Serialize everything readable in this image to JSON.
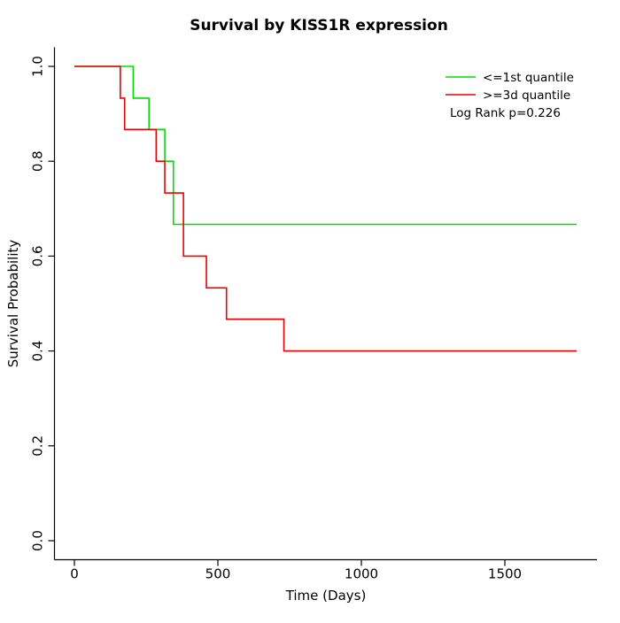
{
  "title": "Survival by KISS1R expression",
  "chart_data": {
    "type": "line",
    "subtype": "kaplan-meier-step",
    "title": "Survival by KISS1R expression",
    "xlabel": "Time (Days)",
    "ylabel": "Survival Probability",
    "xlim": [
      0,
      1750
    ],
    "ylim": [
      0.0,
      1.0
    ],
    "xticks": [
      0,
      500,
      1000,
      1500
    ],
    "yticks": [
      0.0,
      0.2,
      0.4,
      0.6,
      0.8,
      1.0
    ],
    "grid": false,
    "legend_position": "top-right",
    "annotation": "Log Rank p=0.226",
    "series": [
      {
        "name": "<=1st quantile",
        "color": "#00DD00",
        "step": "post",
        "x": [
          0,
          205,
          260,
          315,
          345,
          1750
        ],
        "y": [
          1.0,
          0.933,
          0.867,
          0.8,
          0.667,
          0.667
        ]
      },
      {
        "name": ">=3d quantile",
        "color": "#EE0000",
        "step": "post",
        "x": [
          0,
          160,
          175,
          285,
          315,
          380,
          460,
          530,
          730,
          1750
        ],
        "y": [
          1.0,
          0.933,
          0.867,
          0.8,
          0.733,
          0.6,
          0.533,
          0.467,
          0.4,
          0.4
        ]
      }
    ],
    "colors": {
      "axis": "#000000",
      "text": "#000000",
      "background": "#FFFFFF"
    }
  }
}
